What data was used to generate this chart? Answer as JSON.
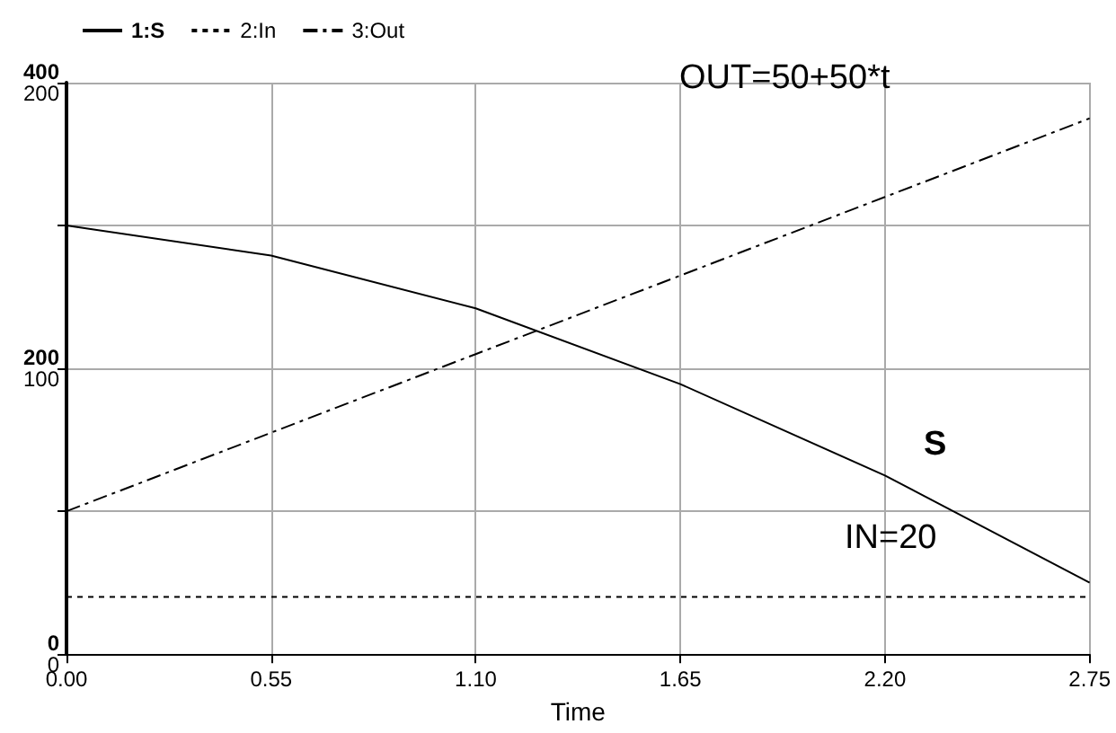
{
  "chart_data": {
    "type": "line",
    "xlabel": "Time",
    "legend": "top left",
    "grid": true,
    "marker": "none",
    "x": [
      0,
      0.55,
      1.1,
      1.65,
      2.2,
      2.75
    ],
    "xlim": [
      0,
      2.75
    ],
    "xticks": [
      {
        "value": 0,
        "label": "0.00"
      },
      {
        "value": 0.55,
        "label": "0.55"
      },
      {
        "value": 1.1,
        "label": "1.10"
      },
      {
        "value": 1.65,
        "label": "1.65"
      },
      {
        "value": 2.2,
        "label": "2.20"
      },
      {
        "value": 2.75,
        "label": "2.75"
      }
    ],
    "ylim": [
      0,
      400
    ],
    "yticks": [
      0,
      {
        "value": 100,
        "label": null
      },
      200,
      {
        "value": 300,
        "label": null
      },
      400
    ],
    "y2lim": [
      0,
      200
    ],
    "y2ticks": [
      0,
      100,
      200
    ],
    "series": [
      {
        "name": "1:S",
        "color": "#000000",
        "line_style": "solid",
        "values": [
          300,
          279,
          242,
          189,
          125,
          50
        ]
      },
      {
        "name": "2:In",
        "color": "#000000",
        "line_style": "dashed",
        "axis": "y2",
        "values": [
          20,
          20,
          20,
          20,
          20,
          20
        ]
      },
      {
        "name": "3:Out",
        "color": "#000000",
        "line_style": "dashdot",
        "axis": "y2",
        "values": [
          50,
          77.5,
          105,
          132.5,
          160,
          187.5
        ]
      }
    ],
    "annotations": [
      "OUT=50+50*t",
      "S",
      "IN=20"
    ]
  }
}
